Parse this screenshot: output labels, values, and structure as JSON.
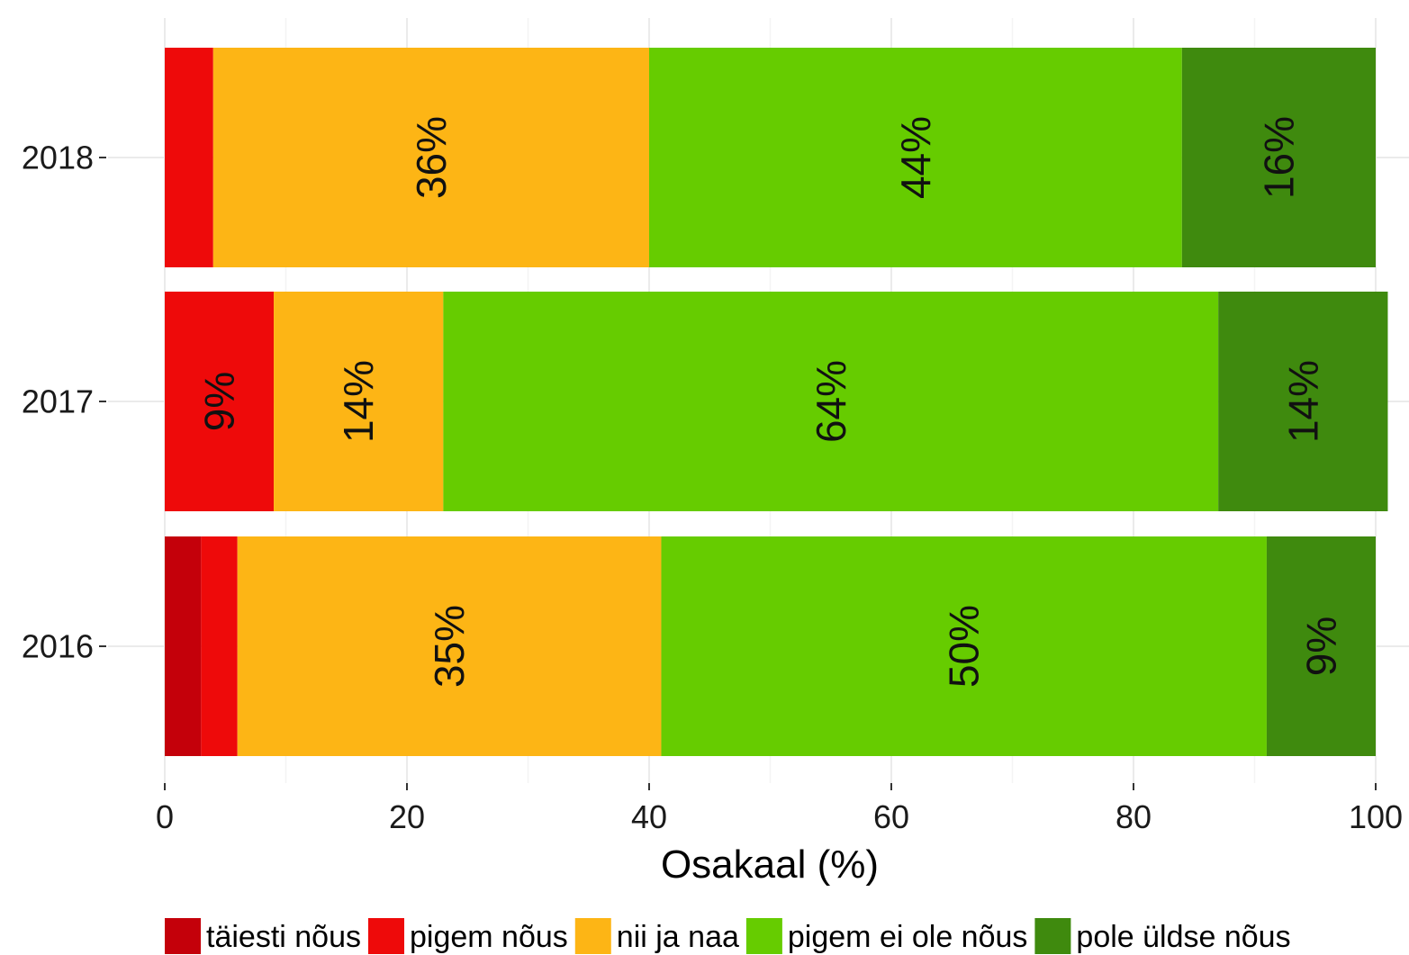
{
  "chart_data": {
    "type": "bar",
    "orientation": "horizontal",
    "stacked": true,
    "categories": [
      "2018",
      "2017",
      "2016"
    ],
    "series": [
      {
        "name": "täiesti nõus",
        "color": "#C4000A",
        "values": [
          0,
          0,
          3
        ],
        "labels": [
          "",
          "",
          ""
        ]
      },
      {
        "name": "pigem nõus",
        "color": "#EE0A0A",
        "values": [
          4,
          9,
          3
        ],
        "labels": [
          "",
          "9%",
          ""
        ]
      },
      {
        "name": "nii ja naa",
        "color": "#FDB515",
        "values": [
          36,
          14,
          35
        ],
        "labels": [
          "36%",
          "14%",
          "35%"
        ]
      },
      {
        "name": "pigem ei ole nõus",
        "color": "#66CC00",
        "values": [
          44,
          64,
          50
        ],
        "labels": [
          "44%",
          "64%",
          "50%"
        ]
      },
      {
        "name": "pole üldse nõus",
        "color": "#3F8A0E",
        "values": [
          16,
          14,
          9
        ],
        "labels": [
          "16%",
          "14%",
          "9%"
        ]
      }
    ],
    "xlabel": "Osakaal (%)",
    "ylabel": "",
    "xlim": [
      0,
      100
    ],
    "xticks": [
      "0",
      "20",
      "40",
      "60",
      "80",
      "100"
    ],
    "grid": true,
    "legend_position": "bottom"
  }
}
